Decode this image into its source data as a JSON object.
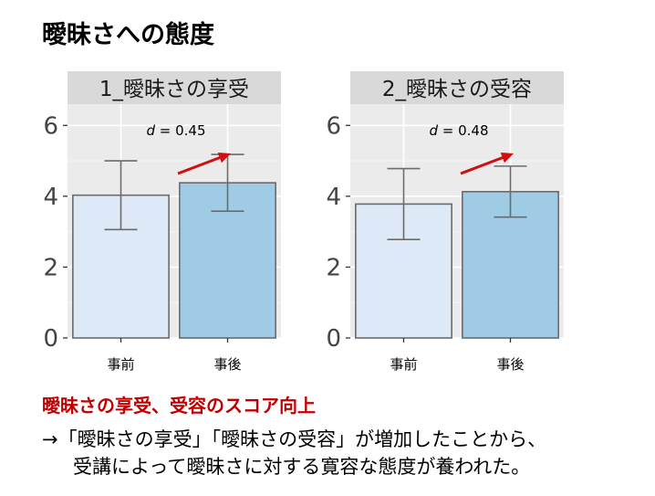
{
  "page": {
    "title": "曖昧さへの態度"
  },
  "chart_data": [
    {
      "type": "bar",
      "title": "1_曖昧さの享受",
      "categories": [
        "事前",
        "事後"
      ],
      "values": [
        4.03,
        4.38
      ],
      "error": [
        0.97,
        0.8
      ],
      "ylim": [
        0,
        6.6
      ],
      "yticks": [
        "0",
        "2",
        "4",
        "6"
      ],
      "annotation": {
        "label": "d",
        "value": "= 0.45"
      },
      "colors": [
        "#dde9f6",
        "#9fcbe4"
      ],
      "grid": true
    },
    {
      "type": "bar",
      "title": "2_曖昧さの受容",
      "categories": [
        "事前",
        "事後"
      ],
      "values": [
        3.78,
        4.13
      ],
      "error": [
        1.0,
        0.72
      ],
      "ylim": [
        0,
        6.6
      ],
      "yticks": [
        "0",
        "2",
        "4",
        "6"
      ],
      "annotation": {
        "label": "d",
        "value": "= 0.48"
      },
      "colors": [
        "#dde9f6",
        "#9fcbe4"
      ],
      "grid": true
    }
  ],
  "conclusion": {
    "heading": "曖昧さの享受、受容のスコア向上",
    "line1": "→「曖昧さの享受」「曖昧さの受容」が増加したことから、",
    "line2": "受講によって曖昧さに対する寛容な態度が養われた。"
  },
  "colors": {
    "accent_red": "#c00000",
    "arrow_red": "#d01010",
    "panel_bg": "#ebebeb",
    "strip_bg": "#d9d9d9"
  }
}
